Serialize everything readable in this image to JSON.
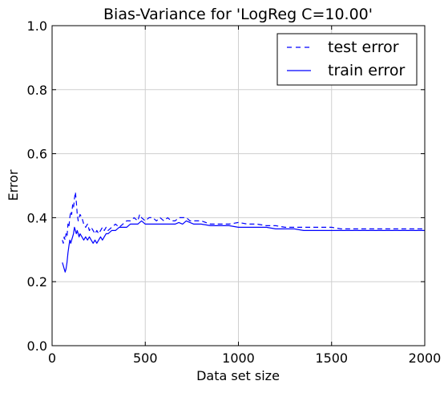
{
  "chart_data": {
    "type": "line",
    "title": "Bias-Variance for 'LogReg C=10.00'",
    "xlabel": "Data set size",
    "ylabel": "Error",
    "xlim": [
      0,
      2000
    ],
    "ylim": [
      0.0,
      1.0
    ],
    "x_ticks": [
      "0",
      "500",
      "1000",
      "1500",
      "2000"
    ],
    "y_ticks": [
      "0.0",
      "0.2",
      "0.4",
      "0.6",
      "0.8",
      "1.0"
    ],
    "x_tick_values": [
      0,
      500,
      1000,
      1500,
      2000
    ],
    "y_tick_values": [
      0.0,
      0.2,
      0.4,
      0.6,
      0.8,
      1.0
    ],
    "grid": true,
    "legend": "top-right",
    "color": "#0000ff",
    "series": [
      {
        "name": "test error",
        "style": "dashed",
        "x": [
          55,
          60,
          65,
          70,
          75,
          80,
          85,
          90,
          95,
          100,
          105,
          110,
          115,
          120,
          125,
          130,
          135,
          140,
          145,
          150,
          160,
          170,
          180,
          190,
          200,
          210,
          220,
          230,
          240,
          250,
          260,
          270,
          280,
          290,
          300,
          320,
          340,
          360,
          380,
          400,
          420,
          440,
          460,
          470,
          480,
          500,
          520,
          540,
          560,
          580,
          600,
          620,
          640,
          660,
          680,
          700,
          720,
          740,
          760,
          780,
          800,
          850,
          900,
          950,
          1000,
          1050,
          1100,
          1150,
          1200,
          1250,
          1300,
          1350,
          1400,
          1450,
          1500,
          1550,
          1600,
          1650,
          1700,
          1750,
          1800,
          1850,
          1900,
          1950,
          2000
        ],
        "values": [
          0.33,
          0.32,
          0.34,
          0.33,
          0.35,
          0.34,
          0.38,
          0.37,
          0.4,
          0.42,
          0.41,
          0.44,
          0.43,
          0.46,
          0.48,
          0.45,
          0.41,
          0.39,
          0.4,
          0.41,
          0.4,
          0.38,
          0.37,
          0.38,
          0.36,
          0.37,
          0.36,
          0.35,
          0.36,
          0.35,
          0.36,
          0.37,
          0.36,
          0.37,
          0.36,
          0.37,
          0.38,
          0.37,
          0.38,
          0.39,
          0.39,
          0.4,
          0.39,
          0.41,
          0.4,
          0.39,
          0.4,
          0.4,
          0.39,
          0.4,
          0.39,
          0.4,
          0.39,
          0.39,
          0.4,
          0.4,
          0.4,
          0.39,
          0.39,
          0.39,
          0.39,
          0.38,
          0.38,
          0.38,
          0.385,
          0.38,
          0.38,
          0.375,
          0.375,
          0.37,
          0.37,
          0.37,
          0.37,
          0.37,
          0.37,
          0.365,
          0.365,
          0.365,
          0.365,
          0.365,
          0.365,
          0.365,
          0.365,
          0.365,
          0.365
        ]
      },
      {
        "name": "train error",
        "style": "solid",
        "x": [
          55,
          60,
          65,
          70,
          75,
          80,
          85,
          90,
          95,
          100,
          105,
          110,
          115,
          120,
          125,
          130,
          135,
          140,
          145,
          150,
          160,
          170,
          180,
          190,
          200,
          210,
          220,
          230,
          240,
          250,
          260,
          270,
          280,
          290,
          300,
          320,
          340,
          360,
          380,
          400,
          420,
          440,
          460,
          480,
          500,
          520,
          540,
          560,
          580,
          600,
          620,
          640,
          660,
          680,
          700,
          720,
          740,
          760,
          780,
          800,
          850,
          900,
          950,
          1000,
          1050,
          1100,
          1150,
          1200,
          1250,
          1300,
          1350,
          1400,
          1450,
          1500,
          1550,
          1600,
          1650,
          1700,
          1750,
          1800,
          1850,
          1900,
          1950,
          2000
        ],
        "values": [
          0.26,
          0.25,
          0.24,
          0.23,
          0.24,
          0.26,
          0.29,
          0.31,
          0.33,
          0.32,
          0.33,
          0.34,
          0.35,
          0.37,
          0.36,
          0.35,
          0.36,
          0.35,
          0.34,
          0.35,
          0.34,
          0.33,
          0.34,
          0.33,
          0.34,
          0.33,
          0.32,
          0.33,
          0.32,
          0.33,
          0.34,
          0.33,
          0.34,
          0.35,
          0.35,
          0.36,
          0.36,
          0.37,
          0.37,
          0.37,
          0.38,
          0.38,
          0.38,
          0.39,
          0.38,
          0.38,
          0.38,
          0.38,
          0.38,
          0.38,
          0.38,
          0.38,
          0.38,
          0.385,
          0.38,
          0.39,
          0.385,
          0.38,
          0.38,
          0.38,
          0.375,
          0.375,
          0.375,
          0.37,
          0.37,
          0.37,
          0.37,
          0.365,
          0.365,
          0.365,
          0.36,
          0.36,
          0.36,
          0.36,
          0.36,
          0.36,
          0.36,
          0.36,
          0.36,
          0.36,
          0.36,
          0.36,
          0.36,
          0.36
        ]
      }
    ]
  }
}
